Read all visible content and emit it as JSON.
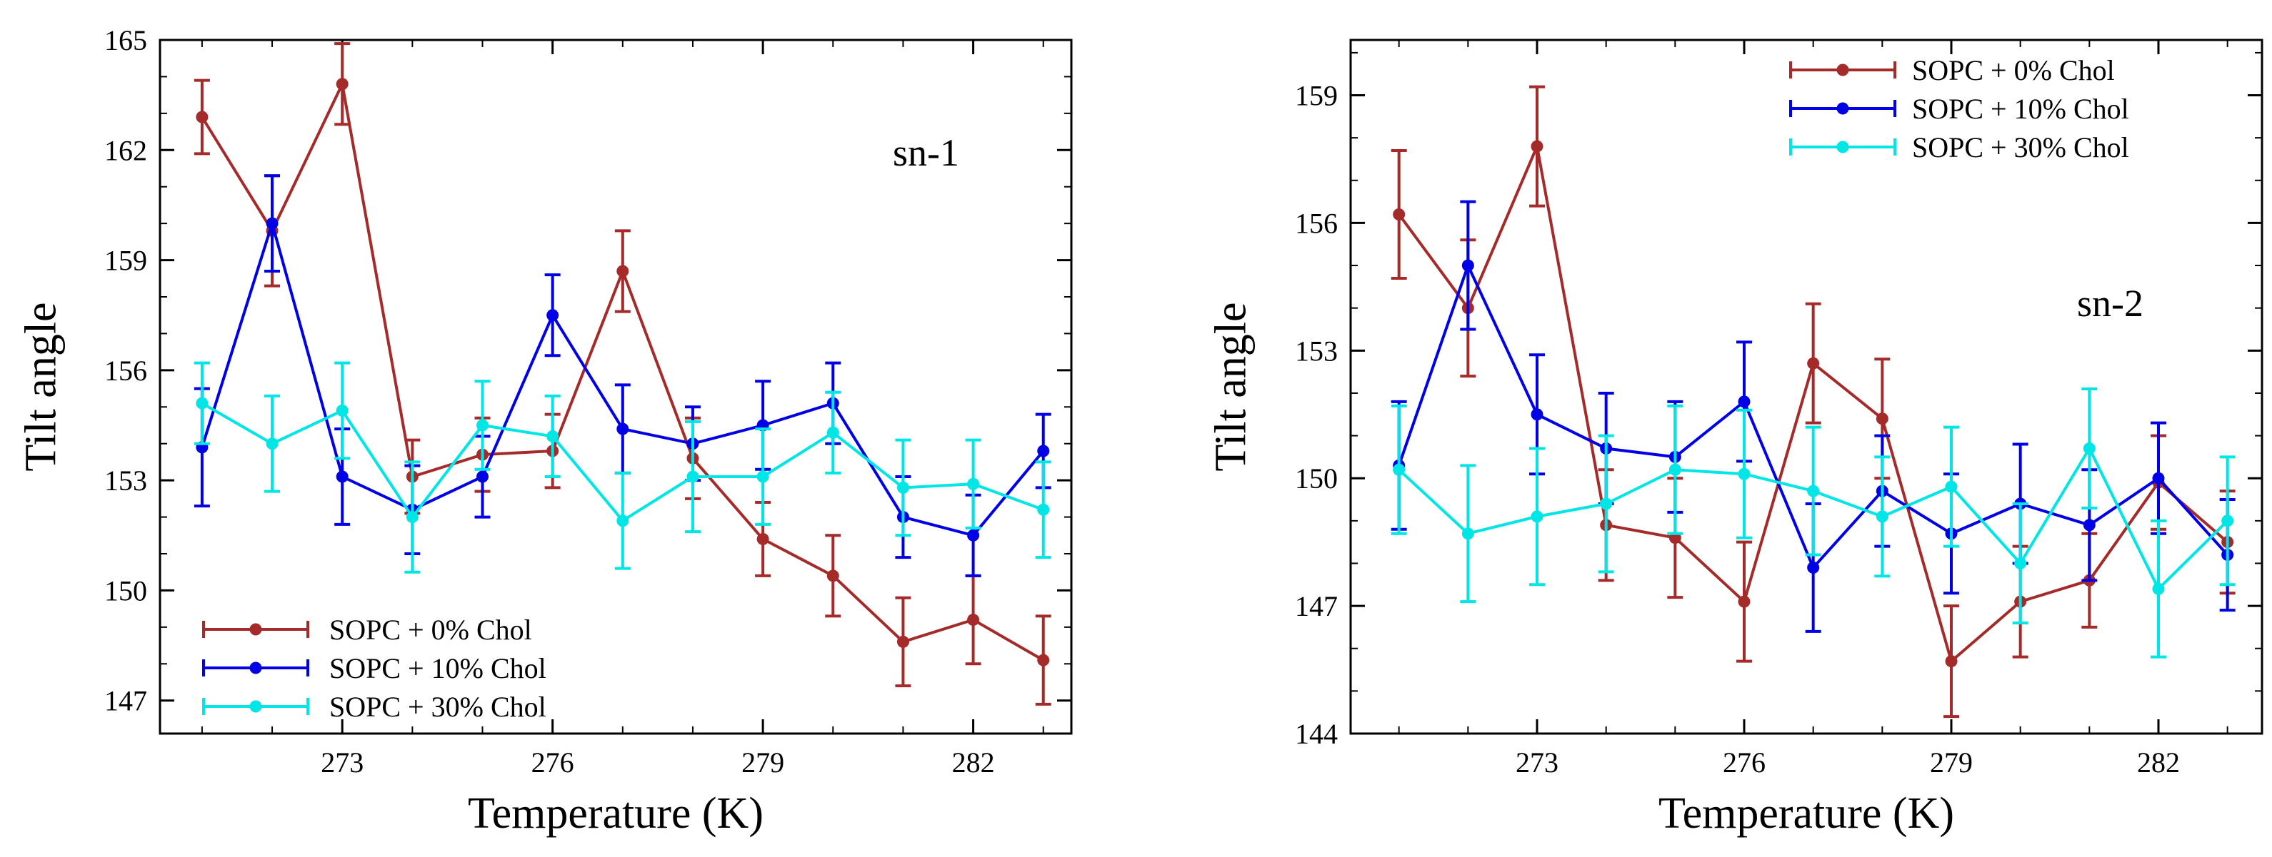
{
  "chart_data": [
    {
      "type": "line",
      "title": "",
      "annotation": "sn-1",
      "xlabel": "Temperature (K)",
      "ylabel": "Tilt angle",
      "xlim": [
        270.4,
        283.4
      ],
      "ylim": [
        146.1,
        165
      ],
      "xticks": [
        273,
        276,
        279,
        282
      ],
      "yticks": [
        147,
        150,
        153,
        156,
        159,
        162,
        165
      ],
      "x": [
        271,
        272,
        273,
        274,
        275,
        276,
        277,
        278,
        279,
        280,
        281,
        282,
        283
      ],
      "grid": false,
      "legend_position": "bottom-left",
      "series": [
        {
          "name": "SOPC + 0% Chol",
          "color": "#a52a2a",
          "values": [
            162.9,
            159.8,
            163.8,
            153.1,
            153.7,
            153.8,
            158.7,
            153.6,
            151.4,
            150.4,
            148.6,
            149.2,
            148.1
          ],
          "errors": [
            1.0,
            1.5,
            1.1,
            1.0,
            1.0,
            1.0,
            1.1,
            1.1,
            1.0,
            1.1,
            1.2,
            1.2,
            1.2
          ]
        },
        {
          "name": "SOPC + 10% Chol",
          "color": "#0000e6",
          "values": [
            153.9,
            160.0,
            153.1,
            152.2,
            153.1,
            157.5,
            154.4,
            154.0,
            154.5,
            155.1,
            152.0,
            151.5,
            153.8
          ],
          "errors": [
            1.6,
            1.3,
            1.3,
            1.2,
            1.1,
            1.1,
            1.2,
            1.0,
            1.2,
            1.1,
            1.1,
            1.1,
            1.0
          ]
        },
        {
          "name": "SOPC + 30% Chol",
          "color": "#00e5e5",
          "values": [
            155.1,
            154.0,
            154.9,
            152.0,
            154.5,
            154.2,
            151.9,
            153.1,
            153.1,
            154.3,
            152.8,
            152.9,
            152.2
          ],
          "errors": [
            1.1,
            1.3,
            1.3,
            1.5,
            1.2,
            1.1,
            1.3,
            1.5,
            1.3,
            1.1,
            1.3,
            1.2,
            1.3
          ]
        }
      ]
    },
    {
      "type": "line",
      "title": "",
      "annotation": "sn-2",
      "xlabel": "Temperature (K)",
      "ylabel": "Tilt angle",
      "xlim": [
        270.3,
        283.5
      ],
      "ylim": [
        144,
        160.3
      ],
      "xticks": [
        273,
        276,
        279,
        282
      ],
      "yticks": [
        144,
        147,
        150,
        153,
        156,
        159
      ],
      "x": [
        271,
        272,
        273,
        274,
        275,
        276,
        277,
        278,
        279,
        280,
        281,
        282,
        283
      ],
      "grid": false,
      "legend_position": "top-right",
      "series": [
        {
          "name": "SOPC + 0% Chol",
          "color": "#a52a2a",
          "values": [
            156.2,
            154.0,
            157.8,
            148.9,
            148.6,
            147.1,
            152.7,
            151.4,
            145.7,
            147.1,
            147.6,
            149.9,
            148.5
          ],
          "errors": [
            1.5,
            1.6,
            1.4,
            1.3,
            1.4,
            1.4,
            1.4,
            1.4,
            1.3,
            1.3,
            1.1,
            1.1,
            1.2
          ]
        },
        {
          "name": "SOPC + 10% Chol",
          "color": "#0000e6",
          "values": [
            150.3,
            155.0,
            151.5,
            150.7,
            150.5,
            151.8,
            147.9,
            149.7,
            148.7,
            149.4,
            148.9,
            150.0,
            148.2
          ],
          "errors": [
            1.5,
            1.5,
            1.4,
            1.3,
            1.3,
            1.4,
            1.5,
            1.3,
            1.4,
            1.4,
            1.3,
            1.3,
            1.3
          ]
        },
        {
          "name": "SOPC + 30% Chol",
          "color": "#00e5e5",
          "values": [
            150.2,
            148.7,
            149.1,
            149.4,
            150.2,
            150.1,
            149.7,
            149.1,
            149.8,
            148.0,
            150.7,
            147.4,
            149.0
          ],
          "errors": [
            1.5,
            1.6,
            1.6,
            1.6,
            1.5,
            1.5,
            1.5,
            1.4,
            1.4,
            1.4,
            1.4,
            1.6,
            1.5
          ]
        }
      ]
    }
  ]
}
